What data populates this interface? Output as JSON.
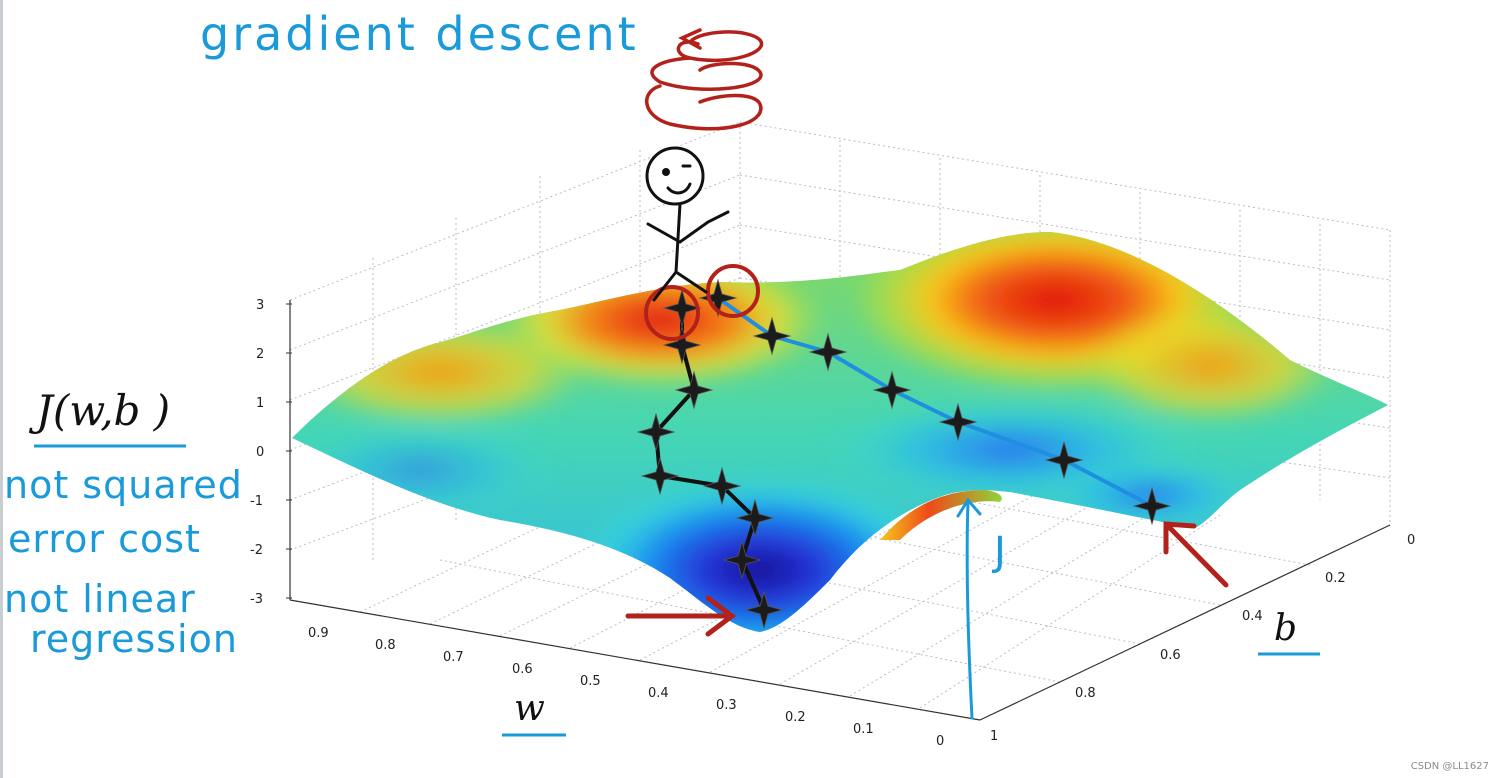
{
  "annotations": {
    "title": "gradient descent",
    "cost_label": "J(w,b )",
    "note_line1": "not squared",
    "note_line2": "error cost",
    "note_line3": "not linear",
    "note_line4": "regression",
    "vertical_label": "J"
  },
  "axes": {
    "w_label": "w",
    "b_label": "b",
    "z_ticks": [
      "3",
      "2",
      "1",
      "0",
      "-1",
      "-2",
      "-3"
    ],
    "w_ticks": [
      "0.9",
      "0.8",
      "0.7",
      "0.6",
      "0.5",
      "0.4",
      "0.3",
      "0.2",
      "0.1",
      "0"
    ],
    "b_ticks": [
      "0",
      "0.2",
      "0.4",
      "0.6",
      "0.8",
      "1"
    ]
  },
  "colors": {
    "annotation_blue": "#1a9ad9",
    "arrow_red": "#b3211b",
    "path_black": "#111111",
    "path_blue": "#1f8fe0"
  },
  "watermark": "CSDN @LL1627"
}
